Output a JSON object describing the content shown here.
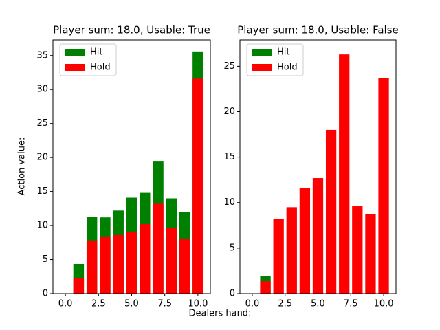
{
  "xlabel": "Dealers hand:",
  "ylabel": "Action value:",
  "chart_data": [
    {
      "type": "bar",
      "title": "Player sum: 18.0, Usable: True",
      "x": [
        0,
        1,
        2,
        3,
        4,
        5,
        6,
        7,
        8,
        9,
        10
      ],
      "series": [
        {
          "name": "Hit",
          "color": "#008000",
          "values": [
            0,
            4.35,
            11.3,
            11.2,
            12.2,
            14.1,
            14.8,
            19.5,
            14.0,
            12.0,
            35.6
          ]
        },
        {
          "name": "Hold",
          "color": "#ff0000",
          "values": [
            0,
            2.3,
            7.8,
            8.3,
            8.6,
            9.0,
            10.2,
            13.2,
            9.7,
            8.0,
            31.6
          ]
        }
      ],
      "xlim": [
        -0.94,
        10.94
      ],
      "ylim": [
        0,
        37.3
      ],
      "xticks": [
        {
          "value": 0,
          "label": "0.0"
        },
        {
          "value": 2.5,
          "label": "2.5"
        },
        {
          "value": 5,
          "label": "5.0"
        },
        {
          "value": 7.5,
          "label": "7.5"
        },
        {
          "value": 10,
          "label": "10.0"
        }
      ],
      "yticks": [
        0,
        5,
        10,
        15,
        20,
        25,
        30,
        35
      ],
      "legend": "upper left"
    },
    {
      "type": "bar",
      "title": "Player sum: 18.0, Usable: False",
      "x": [
        0,
        1,
        2,
        3,
        4,
        5,
        6,
        7,
        8,
        9,
        10
      ],
      "series": [
        {
          "name": "Hit",
          "color": "#008000",
          "values": [
            0,
            1.95,
            null,
            null,
            null,
            null,
            null,
            null,
            null,
            null,
            null
          ]
        },
        {
          "name": "Hold",
          "color": "#ff0000",
          "values": [
            0,
            1.35,
            8.2,
            9.5,
            11.6,
            12.7,
            18.0,
            26.3,
            9.6,
            8.7,
            23.7
          ]
        }
      ],
      "xlim": [
        -0.94,
        10.94
      ],
      "ylim": [
        0,
        27.9
      ],
      "xticks": [
        {
          "value": 0,
          "label": "0.0"
        },
        {
          "value": 2.5,
          "label": "2.5"
        },
        {
          "value": 5,
          "label": "5.0"
        },
        {
          "value": 7.5,
          "label": "7.5"
        },
        {
          "value": 10,
          "label": "10.0"
        }
      ],
      "yticks": [
        0,
        5,
        10,
        15,
        20,
        25
      ],
      "legend": "upper left"
    }
  ]
}
